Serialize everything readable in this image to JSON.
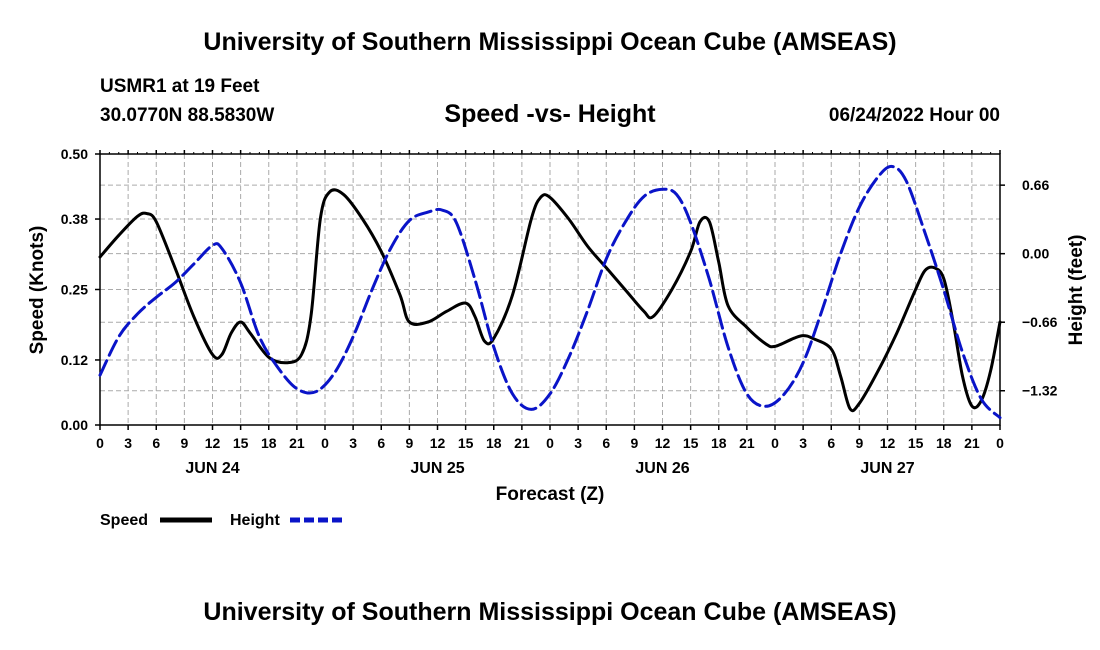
{
  "header": {
    "title": "University of Southern Mississippi Ocean Cube (AMSEAS)",
    "station": "USMR1 at 19 Feet",
    "coords": "30.0770N  88.5830W",
    "subtitle": "Speed -vs- Height",
    "run": "06/24/2022 Hour 00",
    "footer_title": "University of Southern Mississippi Ocean Cube (AMSEAS)"
  },
  "colors": {
    "speed": "#000000",
    "height": "#0a14c8",
    "grid": "#aaaaaa"
  },
  "chart_data": {
    "type": "line",
    "xlabel": "Forecast (Z)",
    "ylabel": "Speed (Knots)",
    "y2label": "Height (feet)",
    "x_unit": "forecast hours from 06/24/2022 00Z",
    "xlim": [
      0,
      96
    ],
    "ylim": [
      0,
      0.5
    ],
    "y2lim": [
      -1.65,
      0.96
    ],
    "x_ticks": [
      0,
      3,
      6,
      9,
      12,
      15,
      18,
      21,
      24,
      27,
      30,
      33,
      36,
      39,
      42,
      45,
      48,
      51,
      54,
      57,
      60,
      63,
      66,
      69,
      72,
      75,
      78,
      81,
      84,
      87,
      90,
      93,
      96
    ],
    "x_tick_labels": [
      "0",
      "3",
      "6",
      "9",
      "12",
      "15",
      "18",
      "21",
      "0",
      "3",
      "6",
      "9",
      "12",
      "15",
      "18",
      "21",
      "0",
      "3",
      "6",
      "9",
      "12",
      "15",
      "18",
      "21",
      "0",
      "3",
      "6",
      "9",
      "12",
      "15",
      "18",
      "21",
      "0"
    ],
    "date_labels": [
      {
        "x": 12,
        "label": "JUN 24"
      },
      {
        "x": 36,
        "label": "JUN 25"
      },
      {
        "x": 60,
        "label": "JUN 26"
      },
      {
        "x": 84,
        "label": "JUN 27"
      }
    ],
    "y_ticks": [
      0.0,
      0.12,
      0.25,
      0.38,
      0.5
    ],
    "y_tick_labels": [
      "0.00",
      "0.12",
      "0.25",
      "0.38",
      "0.50"
    ],
    "y2_ticks": [
      0.66,
      0.0,
      -0.66,
      -1.32
    ],
    "y2_tick_labels": [
      "0.66",
      "0.00",
      "−0.66",
      "−1.32"
    ],
    "series": [
      {
        "name": "Speed",
        "axis": "left",
        "style": "solid",
        "points": [
          [
            0,
            0.31
          ],
          [
            2,
            0.35
          ],
          [
            4,
            0.385
          ],
          [
            5,
            0.39
          ],
          [
            6,
            0.375
          ],
          [
            8,
            0.29
          ],
          [
            10,
            0.2
          ],
          [
            12,
            0.13
          ],
          [
            13,
            0.13
          ],
          [
            14,
            0.17
          ],
          [
            15,
            0.19
          ],
          [
            16,
            0.17
          ],
          [
            18,
            0.125
          ],
          [
            20,
            0.115
          ],
          [
            21.5,
            0.13
          ],
          [
            22.5,
            0.2
          ],
          [
            23.5,
            0.38
          ],
          [
            24.5,
            0.43
          ],
          [
            26,
            0.425
          ],
          [
            28,
            0.38
          ],
          [
            30,
            0.32
          ],
          [
            32,
            0.24
          ],
          [
            33,
            0.19
          ],
          [
            35,
            0.19
          ],
          [
            37,
            0.21
          ],
          [
            39,
            0.225
          ],
          [
            40,
            0.2
          ],
          [
            41,
            0.155
          ],
          [
            42,
            0.16
          ],
          [
            44,
            0.24
          ],
          [
            46,
            0.38
          ],
          [
            47,
            0.42
          ],
          [
            48,
            0.42
          ],
          [
            50,
            0.38
          ],
          [
            52,
            0.33
          ],
          [
            54,
            0.29
          ],
          [
            56,
            0.25
          ],
          [
            58,
            0.21
          ],
          [
            59,
            0.2
          ],
          [
            61,
            0.25
          ],
          [
            63,
            0.32
          ],
          [
            64,
            0.375
          ],
          [
            65,
            0.375
          ],
          [
            66,
            0.3
          ],
          [
            67,
            0.22
          ],
          [
            69,
            0.18
          ],
          [
            71,
            0.15
          ],
          [
            72,
            0.145
          ],
          [
            74,
            0.16
          ],
          [
            75,
            0.165
          ],
          [
            76,
            0.16
          ],
          [
            78,
            0.14
          ],
          [
            79,
            0.09
          ],
          [
            80,
            0.03
          ],
          [
            81,
            0.04
          ],
          [
            83,
            0.1
          ],
          [
            85,
            0.17
          ],
          [
            87,
            0.25
          ],
          [
            88,
            0.285
          ],
          [
            89,
            0.29
          ],
          [
            90,
            0.27
          ],
          [
            91,
            0.19
          ],
          [
            92,
            0.09
          ],
          [
            93,
            0.035
          ],
          [
            94,
            0.045
          ],
          [
            95,
            0.1
          ],
          [
            96,
            0.19
          ]
        ]
      },
      {
        "name": "Height",
        "axis": "right",
        "style": "dashed",
        "points": [
          [
            0,
            -1.17
          ],
          [
            2,
            -0.8
          ],
          [
            4,
            -0.58
          ],
          [
            6,
            -0.42
          ],
          [
            8,
            -0.28
          ],
          [
            10,
            -0.1
          ],
          [
            12,
            0.08
          ],
          [
            13,
            0.05
          ],
          [
            15,
            -0.28
          ],
          [
            17,
            -0.8
          ],
          [
            19,
            -1.1
          ],
          [
            21,
            -1.3
          ],
          [
            23,
            -1.33
          ],
          [
            25,
            -1.15
          ],
          [
            27,
            -0.8
          ],
          [
            29,
            -0.35
          ],
          [
            31,
            0.05
          ],
          [
            33,
            0.32
          ],
          [
            35,
            0.4
          ],
          [
            36.5,
            0.42
          ],
          [
            38,
            0.3
          ],
          [
            40,
            -0.25
          ],
          [
            42,
            -0.9
          ],
          [
            44,
            -1.35
          ],
          [
            46,
            -1.5
          ],
          [
            48,
            -1.35
          ],
          [
            50,
            -1.0
          ],
          [
            52,
            -0.55
          ],
          [
            54,
            -0.05
          ],
          [
            56,
            0.3
          ],
          [
            58,
            0.55
          ],
          [
            60,
            0.62
          ],
          [
            61.5,
            0.57
          ],
          [
            63,
            0.3
          ],
          [
            65,
            -0.25
          ],
          [
            67,
            -0.9
          ],
          [
            69,
            -1.35
          ],
          [
            71,
            -1.47
          ],
          [
            73,
            -1.35
          ],
          [
            75,
            -1.05
          ],
          [
            77,
            -0.55
          ],
          [
            79,
            0.0
          ],
          [
            81,
            0.45
          ],
          [
            83,
            0.74
          ],
          [
            84.5,
            0.84
          ],
          [
            86,
            0.7
          ],
          [
            88,
            0.2
          ],
          [
            90,
            -0.35
          ],
          [
            92,
            -0.95
          ],
          [
            94,
            -1.4
          ],
          [
            96,
            -1.58
          ]
        ]
      }
    ],
    "legend": [
      {
        "label": "Speed",
        "style": "solid"
      },
      {
        "label": "Height",
        "style": "dashed"
      }
    ],
    "legend_position": "bottom-left",
    "grid": true
  }
}
